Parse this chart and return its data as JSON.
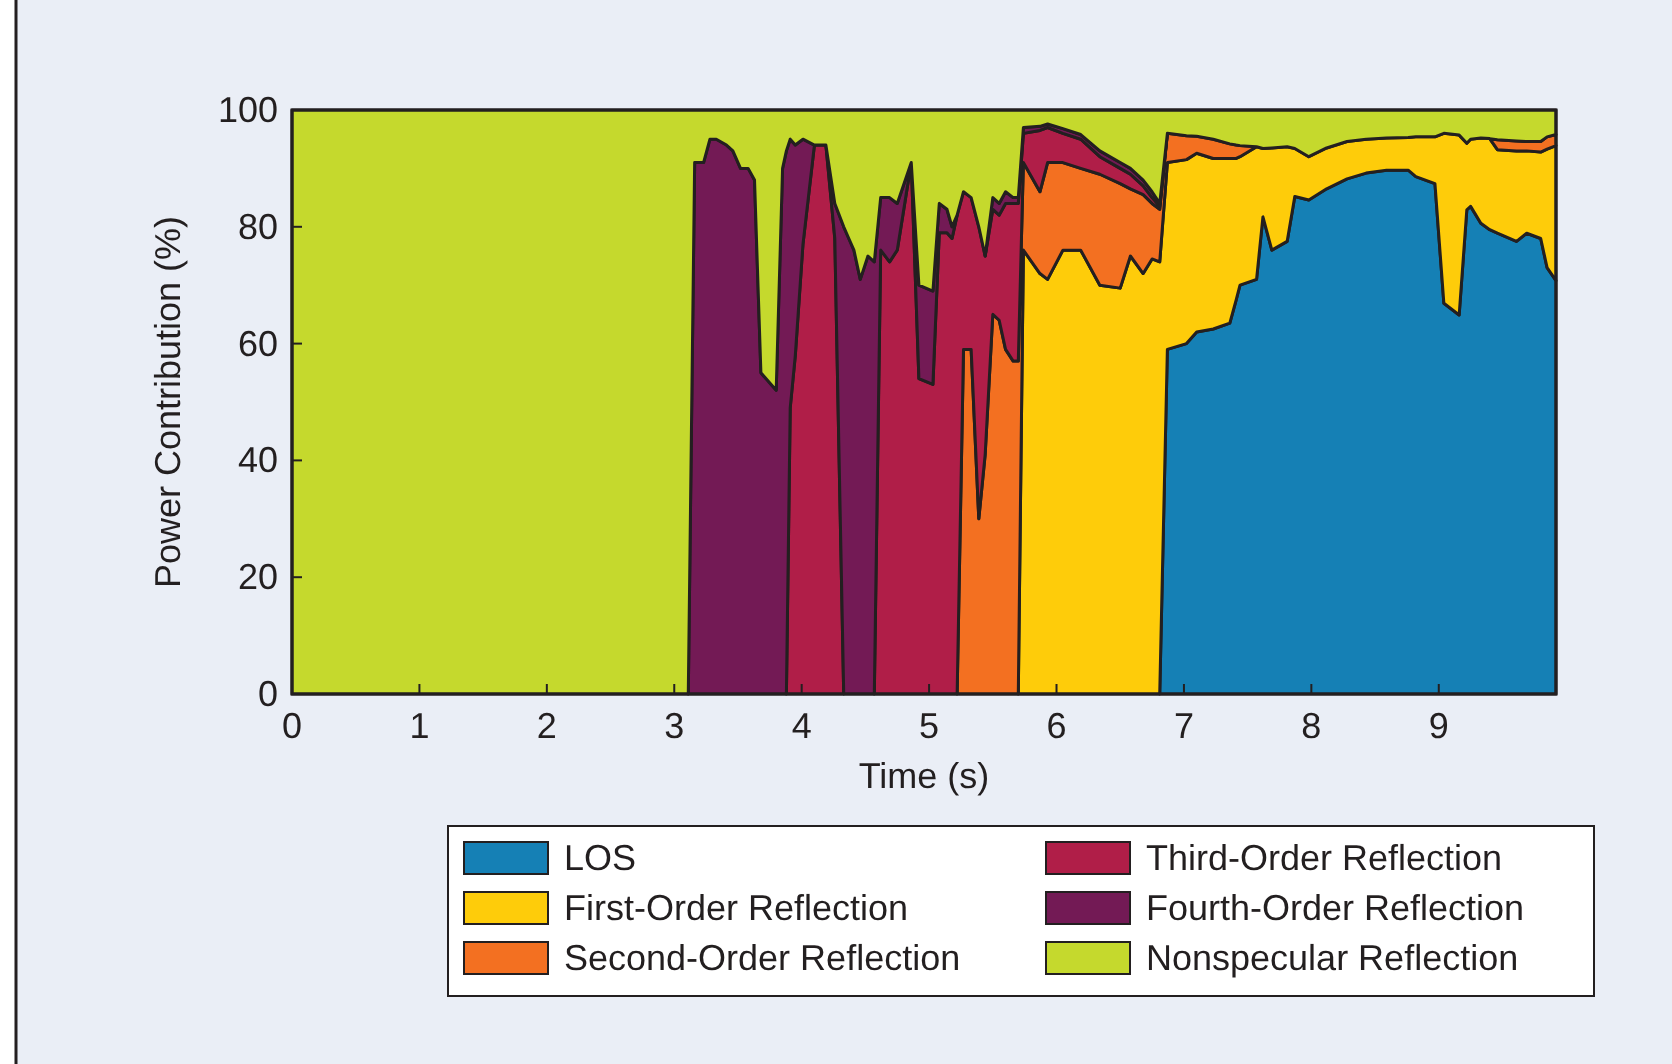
{
  "chart_data": {
    "type": "area",
    "stacked": true,
    "xlabel": "Time (s)",
    "ylabel": "Power Contribution (%)",
    "x": [
      0,
      3.11,
      3.16,
      3.23,
      3.28,
      3.33,
      3.41,
      3.46,
      3.52,
      3.58,
      3.63,
      3.68,
      3.8,
      3.85,
      3.88,
      3.91,
      3.95,
      4.01,
      4.1,
      4.19,
      4.26,
      4.33,
      4.37,
      4.41,
      4.46,
      4.52,
      4.57,
      4.62,
      4.69,
      4.75,
      4.86,
      4.92,
      5.03,
      5.08,
      5.14,
      5.18,
      5.22,
      5.27,
      5.33,
      5.39,
      5.44,
      5.5,
      5.55,
      5.6,
      5.66,
      5.7,
      5.74,
      5.87,
      5.93,
      6.05,
      6.19,
      6.34,
      6.5,
      6.58,
      6.68,
      6.75,
      6.81,
      6.87,
      7.02,
      7.1,
      7.23,
      7.36,
      7.41,
      7.44,
      7.57,
      7.62,
      7.69,
      7.81,
      7.87,
      7.98,
      8.12,
      8.28,
      8.43,
      8.59,
      8.76,
      8.82,
      8.97,
      9.04,
      9.16,
      9.22,
      9.25,
      9.33,
      9.4,
      9.46,
      9.61,
      9.69,
      9.8,
      9.85,
      9.92
    ],
    "xlim": [
      0,
      9.92
    ],
    "xticks": [
      0,
      1,
      2,
      3,
      4,
      5,
      6,
      7,
      8,
      9
    ],
    "ylim": [
      0,
      100
    ],
    "yticks": [
      0,
      20,
      40,
      60,
      80,
      100
    ],
    "legend": "bottom",
    "series": [
      {
        "name": "LOS",
        "color": "#1580b5",
        "values": [
          null,
          null,
          null,
          null,
          null,
          null,
          null,
          null,
          null,
          null,
          null,
          null,
          null,
          null,
          null,
          null,
          null,
          null,
          null,
          null,
          null,
          null,
          null,
          null,
          null,
          null,
          null,
          null,
          null,
          null,
          null,
          null,
          null,
          null,
          null,
          null,
          null,
          null,
          null,
          null,
          null,
          null,
          null,
          null,
          null,
          null,
          null,
          null,
          null,
          null,
          null,
          null,
          null,
          null,
          null,
          null,
          0,
          59,
          60,
          62,
          62.5,
          63.5,
          67.5,
          70,
          71,
          81.7,
          76,
          77.5,
          85.2,
          84.6,
          86.5,
          88.2,
          89.2,
          89.7,
          89.7,
          88.6,
          87.4,
          66.9,
          64.9,
          82.9,
          83.5,
          80.6,
          79.5,
          78.9,
          77.5,
          78.9,
          78,
          73,
          70.8
        ]
      },
      {
        "name": "First-Order Reflection",
        "color": "#fecc0a",
        "values": [
          null,
          null,
          null,
          null,
          null,
          null,
          null,
          null,
          null,
          null,
          null,
          null,
          null,
          null,
          null,
          null,
          null,
          null,
          null,
          null,
          null,
          null,
          null,
          null,
          null,
          null,
          null,
          null,
          null,
          null,
          null,
          null,
          null,
          null,
          null,
          null,
          null,
          null,
          null,
          null,
          null,
          null,
          null,
          null,
          null,
          0,
          76,
          72,
          71,
          76,
          76,
          70,
          69.5,
          75,
          72,
          74.5,
          74,
          32,
          31.5,
          30.6,
          29.2,
          28.2,
          24.2,
          22,
          22.7,
          11.7,
          17.5,
          16.2,
          8.2,
          7.4,
          7,
          6.4,
          5.8,
          5.5,
          5.6,
          6.8,
          8,
          29.1,
          30.8,
          11.4,
          11.5,
          14.6,
          15.6,
          14.3,
          15.5,
          14.1,
          14.8,
          20.3,
          23.1
        ]
      },
      {
        "name": "Second-Order Reflection",
        "color": "#f37021",
        "values": [
          null,
          null,
          null,
          null,
          null,
          null,
          null,
          null,
          null,
          null,
          null,
          null,
          null,
          null,
          null,
          null,
          null,
          null,
          null,
          null,
          null,
          null,
          null,
          null,
          null,
          null,
          null,
          null,
          null,
          null,
          null,
          null,
          null,
          null,
          null,
          null,
          0,
          59,
          59,
          30,
          41,
          65,
          64,
          59,
          57,
          57,
          15,
          14,
          20,
          15,
          14,
          19,
          17.9,
          11.5,
          13.5,
          9.5,
          9,
          5,
          4.1,
          2.9,
          3.3,
          2.5,
          2.3,
          1.9,
          0,
          null,
          null,
          null,
          null,
          null,
          null,
          null,
          null,
          null,
          null,
          null,
          null,
          null,
          null,
          null,
          null,
          null,
          0,
          1.7,
          1.7,
          1.6,
          1.8,
          2.1,
          1.9
        ]
      },
      {
        "name": "Third-Order Reflection",
        "color": "#b01e48",
        "values": [
          null,
          null,
          null,
          null,
          null,
          null,
          null,
          null,
          null,
          null,
          null,
          null,
          null,
          null,
          0,
          49,
          58,
          77,
          94,
          94,
          78,
          0,
          null,
          null,
          null,
          null,
          0,
          76,
          74,
          76,
          91,
          54,
          53,
          79,
          79,
          78,
          82,
          27,
          26,
          50,
          34,
          18,
          18,
          25,
          27,
          27,
          5,
          10.5,
          6,
          5,
          5,
          3,
          2.6,
          2.5,
          1.5,
          1,
          0.5,
          0,
          null,
          null,
          null,
          null,
          null,
          null,
          null,
          null,
          null,
          null,
          null,
          null,
          null,
          null,
          null,
          null,
          null,
          null,
          null,
          null,
          null,
          null,
          null,
          null,
          null,
          null,
          null,
          null,
          null,
          null,
          null
        ]
      },
      {
        "name": "Fourth-Order Reflection",
        "color": "#731a55",
        "values": [
          null,
          0,
          91,
          91,
          95,
          95,
          94,
          93,
          90,
          90,
          88,
          55,
          52,
          90,
          93,
          46,
          36,
          18,
          0,
          0,
          6,
          80,
          78,
          76,
          71,
          75,
          74,
          9,
          11,
          8,
          0,
          16,
          16,
          5,
          4,
          2,
          0,
          null,
          null,
          null,
          0,
          2,
          2,
          2,
          1,
          1,
          1,
          0.7,
          0.6,
          0.8,
          0.8,
          1,
          1,
          1,
          1,
          1,
          0.5,
          0,
          null,
          null,
          null,
          null,
          null,
          null,
          null,
          null,
          null,
          null,
          null,
          null,
          null,
          null,
          null,
          null,
          null,
          null,
          null,
          null,
          null,
          null,
          null,
          null,
          null,
          null,
          null,
          null,
          null,
          null,
          null
        ]
      },
      {
        "name": "Nonspecular Reflection",
        "color": "#c5d92d",
        "values": [
          100,
          100,
          9,
          9,
          5,
          5,
          6,
          7,
          10,
          10,
          12,
          45,
          48,
          10,
          7,
          5,
          6,
          5,
          6,
          6,
          16,
          20,
          22,
          24,
          29,
          25,
          26,
          15,
          15,
          16,
          9,
          30,
          31,
          16,
          17,
          20,
          18,
          14,
          15,
          20,
          25,
          15,
          16,
          14,
          15,
          15,
          3,
          2.8,
          2.4,
          3.2,
          4.2,
          7,
          9,
          10,
          12,
          14,
          16,
          4,
          4.4,
          4.5,
          5,
          5.8,
          6,
          6.1,
          6.3,
          6.6,
          6.5,
          6.3,
          6.6,
          8,
          6.5,
          5.4,
          5,
          4.8,
          4.7,
          4.6,
          4.6,
          4,
          4.3,
          5.7,
          5,
          4.8,
          4.9,
          5.1,
          5.3,
          5.4,
          5.4,
          4.6,
          4.2
        ]
      }
    ]
  }
}
